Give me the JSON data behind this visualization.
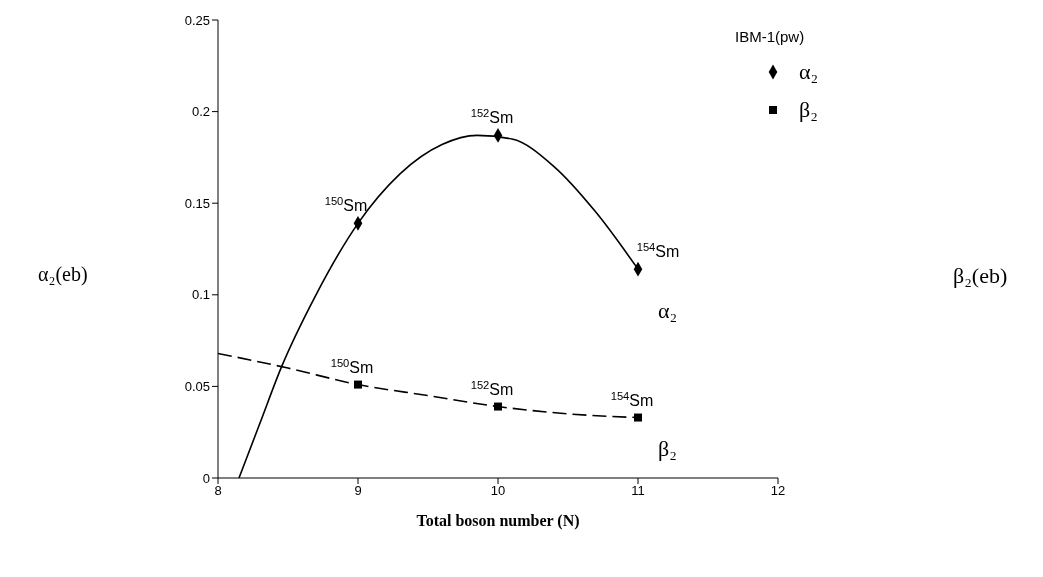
{
  "chart_data": {
    "type": "scatter",
    "xlabel": "Total boson number (N)",
    "ylabel": "α₂(eb)",
    "legend_title": "IBM-1(pw)",
    "legend": "top right",
    "xlim": [
      8,
      12
    ],
    "xticks": [
      8,
      9,
      10,
      11,
      12
    ],
    "ylim": [
      0,
      0.25
    ],
    "yticks": [
      0,
      0.05,
      0.1,
      0.15,
      0.2,
      0.25
    ],
    "series": [
      {
        "name": "α₂",
        "marker": "diamond",
        "color": "#000000",
        "x": [
          9,
          10,
          11
        ],
        "values": [
          0.139,
          0.187,
          0.114
        ]
      },
      {
        "name": "β₂",
        "marker": "square",
        "color": "#000000",
        "x": [
          9,
          10,
          11
        ],
        "values": [
          0.051,
          0.039,
          0.033
        ]
      },
      {
        "type": "line",
        "line_style": "solid",
        "color": "#000000",
        "x": [
          8.15,
          8.3,
          8.45,
          8.7,
          9,
          9.3,
          9.6,
          9.85,
          10.1,
          10.4,
          10.7,
          11
        ],
        "values": [
          0,
          0.03,
          0.06,
          0.1,
          0.139,
          0.166,
          0.182,
          0.187,
          0.185,
          0.17,
          0.145,
          0.114
        ]
      },
      {
        "type": "line",
        "line_style": "dashed",
        "color": "#000000",
        "x": [
          8,
          8.5,
          9,
          9.5,
          10,
          10.5,
          11
        ],
        "values": [
          0.068,
          0.06,
          0.051,
          0.045,
          0.039,
          0.035,
          0.033
        ]
      }
    ],
    "annotations": [
      {
        "text": "$^{150}$Sm",
        "x": 9,
        "y": 0.139
      },
      {
        "text": "$^{152}$Sm",
        "x": 10,
        "y": 0.187
      },
      {
        "text": "$^{154}$Sm",
        "x": 11,
        "y": 0.114
      },
      {
        "text": "$^{150}$Sm",
        "x": 9,
        "y": 0.051
      },
      {
        "text": "$^{152}$Sm",
        "x": 10,
        "y": 0.039
      },
      {
        "text": "$^{154}$Sm",
        "x": 11,
        "y": 0.033
      },
      "α₂",
      "β₂",
      "β₂(eb)"
    ]
  }
}
